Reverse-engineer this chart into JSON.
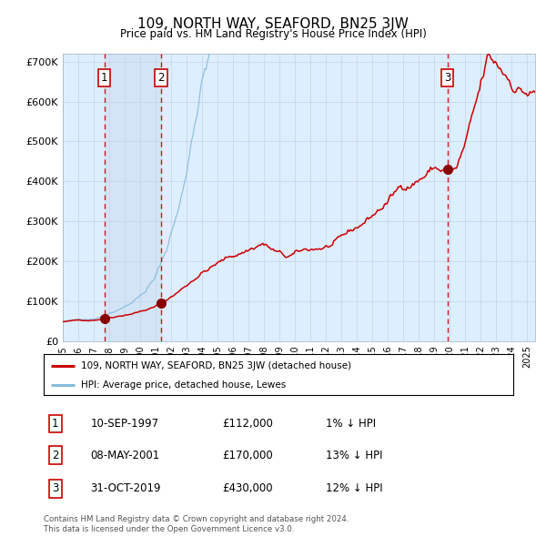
{
  "title": "109, NORTH WAY, SEAFORD, BN25 3JW",
  "subtitle": "Price paid vs. HM Land Registry's House Price Index (HPI)",
  "footer1": "Contains HM Land Registry data © Crown copyright and database right 2024.",
  "footer2": "This data is licensed under the Open Government Licence v3.0.",
  "legend_label_red": "109, NORTH WAY, SEAFORD, BN25 3JW (detached house)",
  "legend_label_blue": "HPI: Average price, detached house, Lewes",
  "transactions": [
    {
      "num": 1,
      "date": "10-SEP-1997",
      "price": 112000,
      "hpi_diff": "1% ↓ HPI",
      "year_x": 1997.69
    },
    {
      "num": 2,
      "date": "08-MAY-2001",
      "price": 170000,
      "hpi_diff": "13% ↓ HPI",
      "year_x": 2001.35
    },
    {
      "num": 3,
      "date": "31-OCT-2019",
      "price": 430000,
      "hpi_diff": "12% ↓ HPI",
      "year_x": 2019.83
    }
  ],
  "ylim": [
    0,
    720000
  ],
  "yticks": [
    0,
    100000,
    200000,
    300000,
    400000,
    500000,
    600000,
    700000
  ],
  "ytick_labels": [
    "£0",
    "£100K",
    "£200K",
    "£300K",
    "£400K",
    "£500K",
    "£600K",
    "£700K"
  ],
  "xlim": [
    1995.0,
    2025.5
  ],
  "grid_color": "#c8d8e8",
  "plot_bg": "#ddeeff",
  "red_color": "#cc0000",
  "blue_color": "#88bbdd",
  "marker_color": "#880000",
  "dashed_color": "#cc0000",
  "shade_color": "#c0d4e8",
  "fig_width": 6.0,
  "fig_height": 5.9
}
